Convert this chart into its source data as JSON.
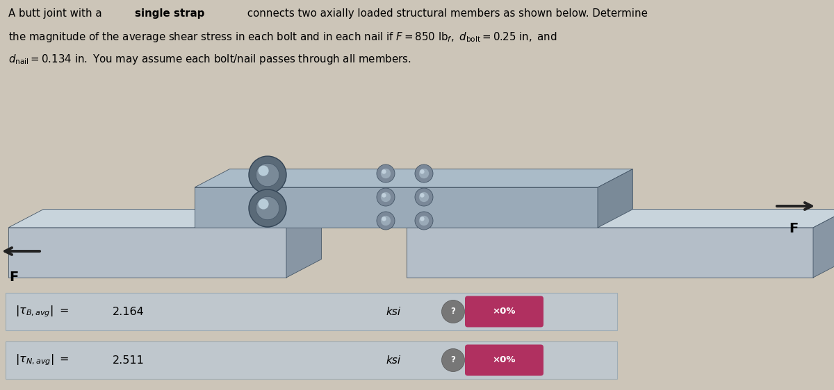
{
  "bg_color": "#ccc5b8",
  "row_bg": "#bec8d0",
  "row_border": "#9aaab4",
  "badge_bg": "#b03060",
  "badge_text": "×0%",
  "F_label": "F",
  "arrow_color": "#222222",
  "row1_value": "2.164",
  "row2_value": "2.511",
  "unit": "ksi",
  "title_line1": "A butt joint with a \\textbf{single strap} connects two axially loaded structural members as shown below. Determine",
  "title_line2": "the magnitude of the average shear stress in each bolt and in each nail if $F = 850$ lb$_f$, $d_{\\mathrm{bolt}} = 0.25$ in, and",
  "title_line3": "$d_{\\mathrm{nail}} = 0.134$ in. You may assume each bolt/nail passes through all members.",
  "beam_face": "#b4bec8",
  "beam_top": "#c8d4dc",
  "beam_side": "#8896a4",
  "strap_face": "#9aaab8",
  "strap_top": "#aabbc8",
  "strap_side": "#7a8a98",
  "bolt_outer": "#5a6a78",
  "bolt_inner": "#7a8a98",
  "bolt_highlight": "#b8ccd8",
  "nail_outer": "#7a8898",
  "nail_inner": "#9aaab8"
}
